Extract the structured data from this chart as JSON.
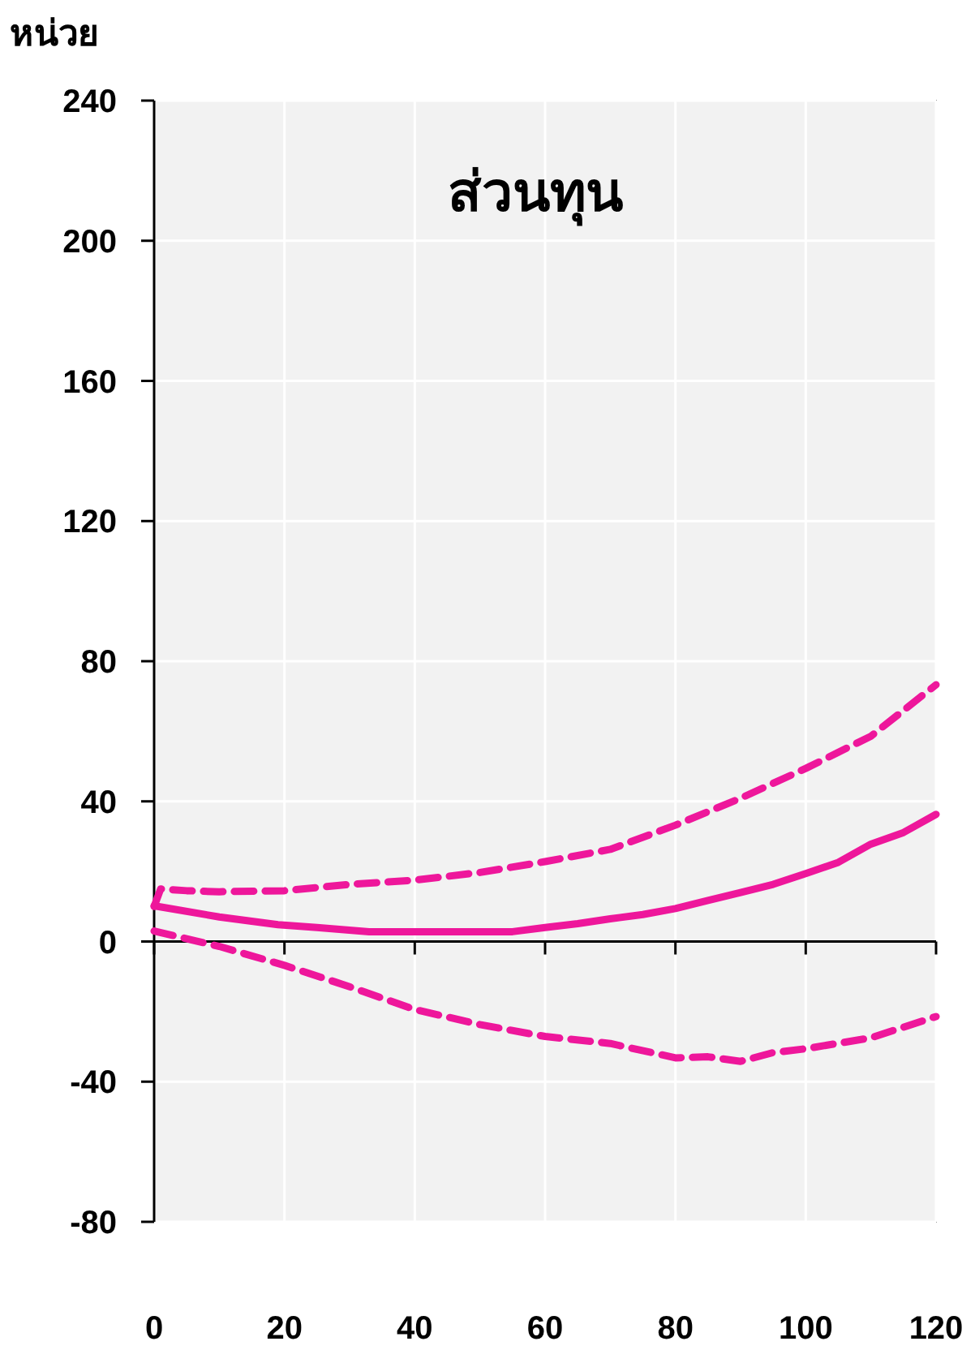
{
  "chart_data": {
    "type": "line",
    "title": "ส่วนทุน",
    "ylabel": "หน่วย",
    "xlim": [
      0,
      120
    ],
    "ylim": [
      -80,
      240
    ],
    "xticks": [
      0,
      20,
      40,
      60,
      80,
      100,
      120
    ],
    "yticks": [
      -80,
      -40,
      0,
      40,
      80,
      120,
      160,
      200,
      240
    ],
    "grid": true,
    "series": [
      {
        "color": "#ee179b",
        "line_style": "solid",
        "x": [
          0,
          10,
          19,
          25,
          33,
          40,
          50,
          55,
          60,
          65,
          70,
          75,
          80,
          85,
          90,
          95,
          100,
          105,
          110,
          115,
          120
        ],
        "values": [
          10.2,
          7,
          4.8,
          4,
          2.8,
          2.8,
          2.8,
          2.8,
          4,
          5.1,
          6.5,
          7.7,
          9.4,
          11.7,
          14,
          16.3,
          19.4,
          22.6,
          27.8,
          31.1,
          36.3
        ]
      },
      {
        "color": "#ee179b",
        "line_style": "dashed",
        "x": [
          0,
          1,
          5,
          10,
          20,
          30,
          40,
          50,
          60,
          70,
          80,
          90,
          100,
          110,
          120
        ],
        "values": [
          10,
          15,
          14.5,
          14.2,
          14.5,
          16.3,
          17.5,
          19.7,
          22.8,
          26.3,
          33.2,
          40.9,
          49.4,
          58.6,
          73.3
        ]
      },
      {
        "color": "#ee179b",
        "line_style": "dashed",
        "x": [
          0,
          10,
          20,
          30,
          40,
          50,
          60,
          70,
          80,
          85,
          90,
          95,
          100,
          110,
          120
        ],
        "values": [
          3,
          -1.4,
          -6.8,
          -12.9,
          -19.4,
          -23.7,
          -27.1,
          -29.1,
          -33.2,
          -32.9,
          -34.2,
          -31.7,
          -30.6,
          -27.5,
          -21.4
        ]
      }
    ]
  }
}
